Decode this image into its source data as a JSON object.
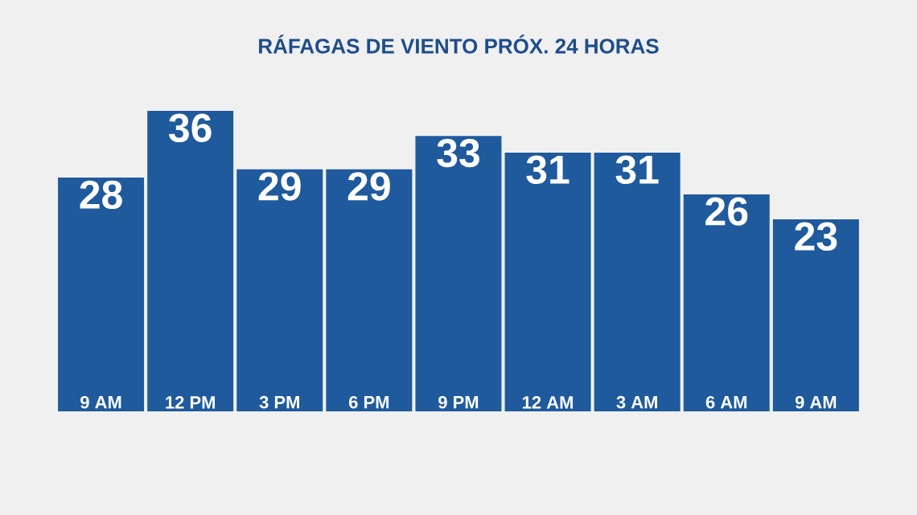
{
  "chart_data": {
    "type": "bar",
    "title": "RÁFAGAS DE VIENTO PRÓX. 24 HORAS",
    "categories": [
      "9 AM",
      "12 PM",
      "3 PM",
      "6 PM",
      "9 PM",
      "12 AM",
      "3 AM",
      "6 AM",
      "9 AM"
    ],
    "values": [
      28,
      36,
      29,
      29,
      33,
      31,
      31,
      26,
      23
    ],
    "color": "#1f5a9c",
    "data_labels": true
  }
}
